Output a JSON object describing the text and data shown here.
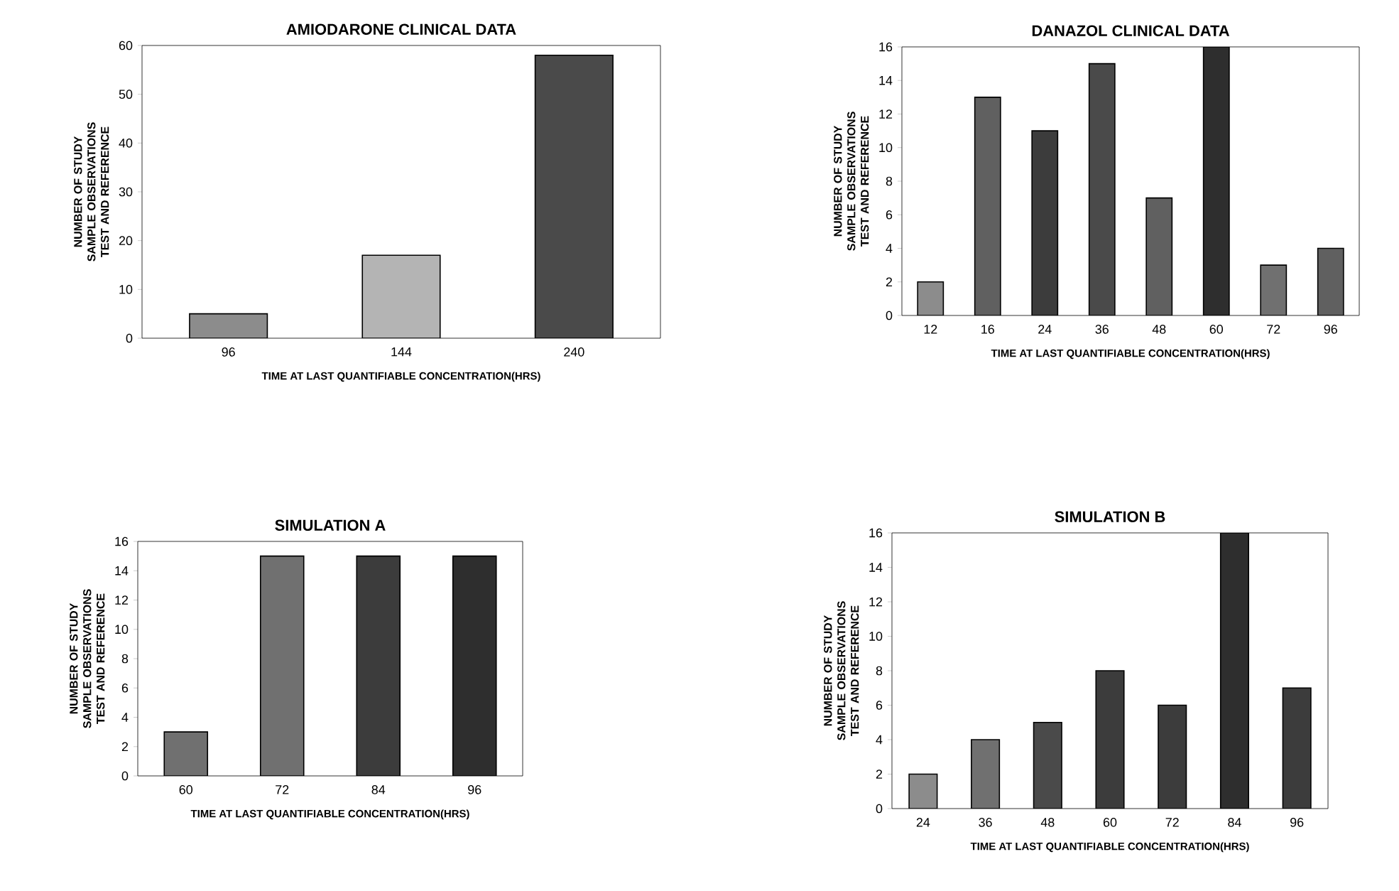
{
  "chart_data": [
    {
      "type": "bar",
      "title": "AMIODARONE CLINICAL DATA",
      "xlabel": "TIME AT LAST QUANTIFIABLE CONCENTRATION(HRS)",
      "ylabel": "NUMBER OF STUDY SAMPLE OBSERVATIONS TEST AND REFERENCE",
      "categories": [
        "96",
        "144",
        "240"
      ],
      "values": [
        5,
        17,
        58
      ],
      "colors": [
        "#8c8c8c",
        "#b4b4b4",
        "#4a4a4a"
      ],
      "ylim": [
        0,
        60
      ],
      "yticks": [
        0,
        10,
        20,
        30,
        40,
        50,
        60
      ],
      "grid": false
    },
    {
      "type": "bar",
      "title": "DANAZOL CLINICAL DATA",
      "xlabel": "TIME AT LAST QUANTIFIABLE CONCENTRATION(HRS)",
      "ylabel": "NUMBER OF STUDY SAMPLE OBSERVATIONS TEST AND REFERENCE",
      "categories": [
        "12",
        "16",
        "24",
        "36",
        "48",
        "60",
        "72",
        "96"
      ],
      "values": [
        2,
        13,
        11,
        15,
        7,
        16,
        3,
        4
      ],
      "colors": [
        "#8c8c8c",
        "#606060",
        "#3c3c3c",
        "#4a4a4a",
        "#606060",
        "#2e2e2e",
        "#707070",
        "#606060"
      ],
      "ylim": [
        0,
        16
      ],
      "yticks": [
        0,
        2,
        4,
        6,
        8,
        10,
        12,
        14,
        16
      ],
      "grid": false
    },
    {
      "type": "bar",
      "title": "SIMULATION A",
      "xlabel": "TIME AT LAST QUANTIFIABLE CONCENTRATION(HRS)",
      "ylabel": "NUMBER OF STUDY SAMPLE OBSERVATIONS TEST AND REFERENCE",
      "categories": [
        "60",
        "72",
        "84",
        "96"
      ],
      "values": [
        3,
        15,
        15,
        15
      ],
      "colors": [
        "#707070",
        "#707070",
        "#3c3c3c",
        "#2e2e2e"
      ],
      "ylim": [
        0,
        16
      ],
      "yticks": [
        0,
        2,
        4,
        6,
        8,
        10,
        12,
        14,
        16
      ],
      "grid": false
    },
    {
      "type": "bar",
      "title": "SIMULATION B",
      "xlabel": "TIME AT LAST QUANTIFIABLE CONCENTRATION(HRS)",
      "ylabel": "NUMBER OF STUDY SAMPLE OBSERVATIONS TEST AND REFERENCE",
      "categories": [
        "24",
        "36",
        "48",
        "60",
        "72",
        "84",
        "96"
      ],
      "values": [
        2,
        4,
        5,
        8,
        6,
        16,
        7
      ],
      "colors": [
        "#8c8c8c",
        "#707070",
        "#4a4a4a",
        "#3c3c3c",
        "#3c3c3c",
        "#2e2e2e",
        "#3c3c3c"
      ],
      "ylim": [
        0,
        16
      ],
      "yticks": [
        0,
        2,
        4,
        6,
        8,
        10,
        12,
        14,
        16
      ],
      "grid": false
    }
  ]
}
